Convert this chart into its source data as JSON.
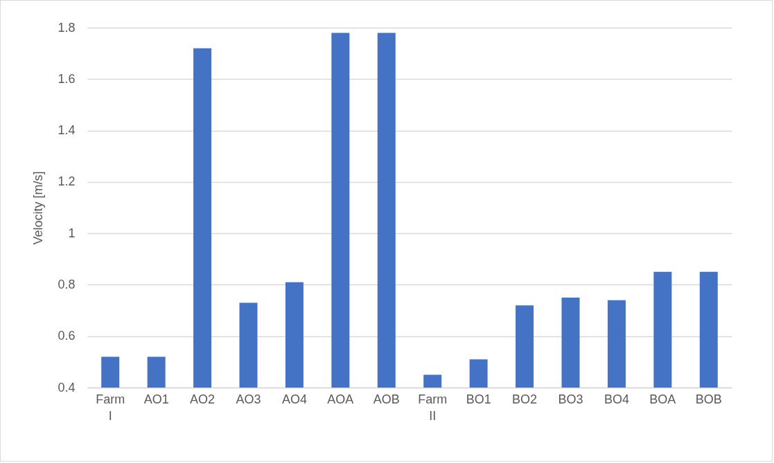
{
  "chart_data": {
    "type": "bar",
    "ylabel": "Velocity [m/s]",
    "categories": [
      "Farm I",
      "AO1",
      "AO2",
      "AO3",
      "AO4",
      "AOA",
      "AOB",
      "Farm II",
      "BO1",
      "BO2",
      "BO3",
      "BO4",
      "BOA",
      "BOB"
    ],
    "values": [
      0.52,
      0.52,
      1.72,
      0.73,
      0.81,
      1.78,
      1.78,
      0.45,
      0.51,
      0.72,
      0.75,
      0.74,
      0.85,
      0.85
    ],
    "color": "#4472c4",
    "ylim": [
      0.4,
      1.8
    ],
    "yticks": [
      0.4,
      0.6,
      0.8,
      1,
      1.2,
      1.4,
      1.6,
      1.8
    ],
    "grid": "y"
  }
}
